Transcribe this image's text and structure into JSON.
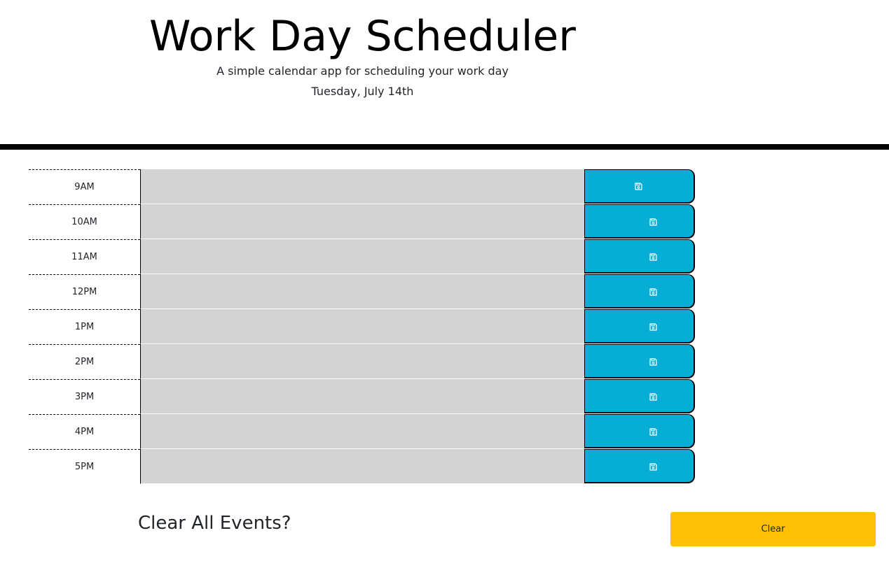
{
  "header": {
    "title": "Work Day Scheduler",
    "subtitle": "A simple calendar app for scheduling your work day",
    "date": "Tuesday, July 14th"
  },
  "schedule": {
    "rows": [
      {
        "hour": "9AM",
        "event": ""
      },
      {
        "hour": "10AM",
        "event": ""
      },
      {
        "hour": "11AM",
        "event": ""
      },
      {
        "hour": "12PM",
        "event": ""
      },
      {
        "hour": "1PM",
        "event": ""
      },
      {
        "hour": "2PM",
        "event": ""
      },
      {
        "hour": "3PM",
        "event": ""
      },
      {
        "hour": "4PM",
        "event": ""
      },
      {
        "hour": "5PM",
        "event": ""
      }
    ],
    "save_icon": "save-icon"
  },
  "footer": {
    "clear_prompt": "Clear All Events?",
    "clear_button_label": "Clear"
  },
  "colors": {
    "textarea_bg": "#d3d3d3",
    "save_button": "#06aed5",
    "clear_button": "#ffc107",
    "divider": "#000000"
  }
}
